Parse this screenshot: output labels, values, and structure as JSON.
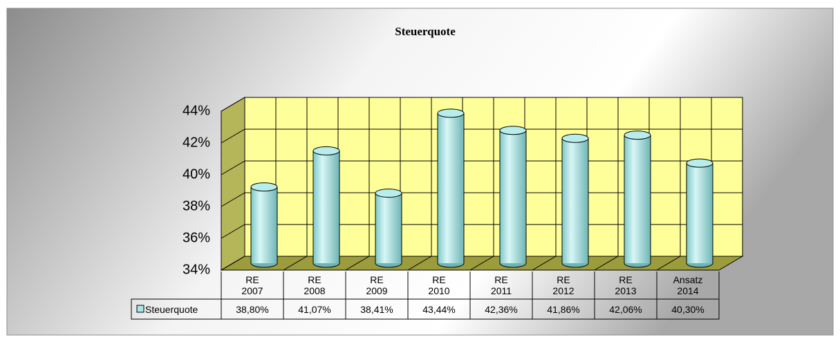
{
  "chart_data": {
    "type": "bar",
    "title": "Steuerquote",
    "categories": [
      "RE 2007",
      "RE 2008",
      "RE 2009",
      "RE 2010",
      "RE 2011",
      "RE 2012",
      "RE 2013",
      "Ansatz 2014"
    ],
    "series": [
      {
        "name": "Steuerquote",
        "color": "#a8e6e6",
        "values": [
          38.8,
          41.07,
          38.41,
          43.44,
          42.36,
          41.86,
          42.06,
          40.3
        ],
        "value_labels": [
          "38,80%",
          "41,07%",
          "38,41%",
          "43,44%",
          "42,36%",
          "41,86%",
          "42,06%",
          "40,30%"
        ]
      }
    ],
    "ylim": [
      34,
      44
    ],
    "yticks": [
      {
        "value": 34,
        "label": "34%"
      },
      {
        "value": 36,
        "label": "36%"
      },
      {
        "value": 38,
        "label": "38%"
      },
      {
        "value": 40,
        "label": "40%"
      },
      {
        "value": 42,
        "label": "42%"
      },
      {
        "value": 44,
        "label": "44%"
      }
    ],
    "grid": true,
    "legend": "bottom"
  }
}
